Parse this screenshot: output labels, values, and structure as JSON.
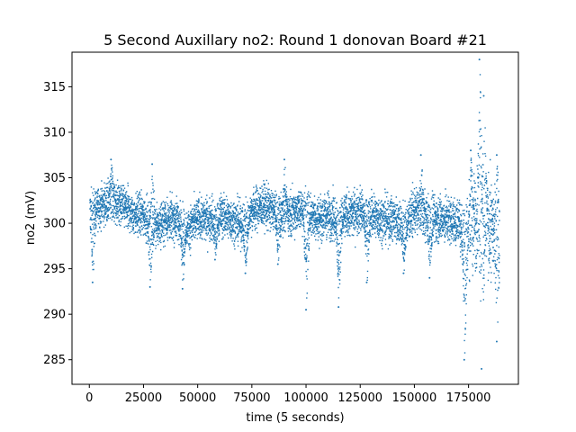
{
  "chart_data": {
    "type": "scatter",
    "title": "5 Second Auxillary no2: Round 1 donovan Board #21",
    "xlabel": "time (5 seconds)",
    "ylabel": "no2 (mV)",
    "xlim": [
      -8000,
      198000
    ],
    "ylim": [
      282.3,
      318.8
    ],
    "xticks": [
      0,
      25000,
      50000,
      75000,
      100000,
      125000,
      150000,
      175000
    ],
    "yticks": [
      285,
      290,
      295,
      300,
      305,
      310,
      315
    ],
    "grid": false,
    "legend": "none",
    "marker_color": "#1f77b4",
    "x_range": [
      0,
      189000
    ],
    "baseline_profile": [
      [
        0,
        301.5
      ],
      [
        5000,
        302.0
      ],
      [
        10000,
        302.5
      ],
      [
        15000,
        302.0
      ],
      [
        20000,
        301.0
      ],
      [
        25000,
        301.0
      ],
      [
        30000,
        299.5
      ],
      [
        35000,
        300.5
      ],
      [
        40000,
        300.5
      ],
      [
        45000,
        299.5
      ],
      [
        50000,
        300.5
      ],
      [
        55000,
        300.5
      ],
      [
        60000,
        301.0
      ],
      [
        65000,
        300.5
      ],
      [
        70000,
        300.0
      ],
      [
        75000,
        301.5
      ],
      [
        80000,
        302.0
      ],
      [
        85000,
        301.5
      ],
      [
        90000,
        301.0
      ],
      [
        95000,
        301.5
      ],
      [
        100000,
        301.5
      ],
      [
        105000,
        300.5
      ],
      [
        110000,
        301.0
      ],
      [
        115000,
        300.5
      ],
      [
        120000,
        301.0
      ],
      [
        125000,
        301.5
      ],
      [
        130000,
        301.0
      ],
      [
        135000,
        300.5
      ],
      [
        140000,
        300.5
      ],
      [
        145000,
        300.0
      ],
      [
        150000,
        301.5
      ],
      [
        155000,
        301.0
      ],
      [
        160000,
        300.5
      ],
      [
        165000,
        300.5
      ],
      [
        170000,
        300.0
      ],
      [
        175000,
        299.5
      ],
      [
        180000,
        301.0
      ],
      [
        185000,
        299.5
      ],
      [
        189000,
        299.0
      ]
    ],
    "noise_band_mV": [
      [
        0,
        2.0
      ],
      [
        170000,
        2.3
      ],
      [
        175000,
        4.5
      ],
      [
        182000,
        5.0
      ],
      [
        189000,
        4.0
      ]
    ],
    "dips": [
      {
        "x": 1500,
        "min": 293.5
      },
      {
        "x": 28000,
        "min": 293.0
      },
      {
        "x": 43000,
        "min": 292.8
      },
      {
        "x": 58000,
        "min": 296.0
      },
      {
        "x": 72000,
        "min": 294.5
      },
      {
        "x": 87000,
        "min": 295.5
      },
      {
        "x": 100000,
        "min": 290.5
      },
      {
        "x": 115000,
        "min": 290.8
      },
      {
        "x": 128000,
        "min": 293.5
      },
      {
        "x": 145000,
        "min": 294.5
      },
      {
        "x": 157000,
        "min": 294.0
      },
      {
        "x": 173000,
        "min": 285.0
      },
      {
        "x": 181000,
        "min": 284.0
      },
      {
        "x": 188000,
        "min": 287.0
      }
    ],
    "spikes": [
      {
        "x": 10000,
        "max": 307.0
      },
      {
        "x": 29000,
        "max": 306.5
      },
      {
        "x": 90000,
        "max": 307.0
      },
      {
        "x": 153000,
        "max": 307.5
      },
      {
        "x": 176000,
        "max": 308.0
      },
      {
        "x": 180000,
        "max": 318.0
      },
      {
        "x": 182000,
        "max": 314.0
      },
      {
        "x": 188000,
        "max": 307.5
      }
    ]
  }
}
